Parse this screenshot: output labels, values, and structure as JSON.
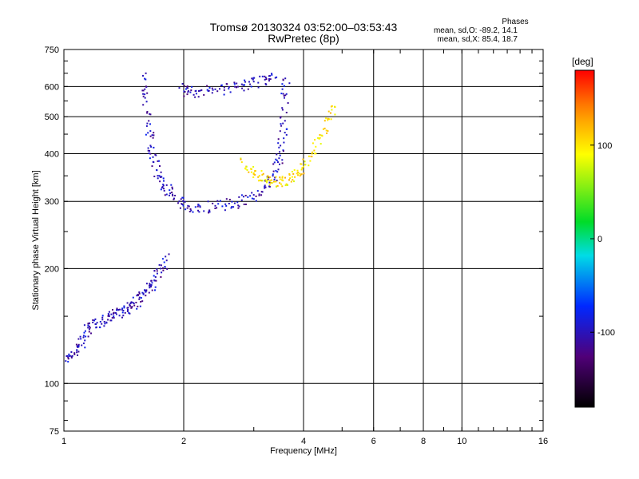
{
  "chart_data": {
    "type": "scatter",
    "title": "Tromsø 20130324 03:52:00–03:53:43",
    "subtitle": "RwPretec (8p)",
    "xlabel": "Frequency [MHz]",
    "ylabel": "Stationary phase Virtual Height [km]",
    "x_scale": "log",
    "y_scale": "log",
    "xlim": [
      1,
      16
    ],
    "ylim": [
      75,
      750
    ],
    "x_ticks": [
      1,
      2,
      4,
      6,
      8,
      10,
      16
    ],
    "y_ticks": [
      75,
      100,
      200,
      300,
      400,
      500,
      600,
      750
    ],
    "grid": true,
    "phase_stats": {
      "heading": "Phases",
      "line_o": "mean, sd,O: -89.2, 14.1",
      "line_x": "mean, sd,X: 85.4, 18.7"
    },
    "colorbar": {
      "unit": "[deg]",
      "range": [
        -180,
        180
      ],
      "ticks": [
        100,
        0,
        -100
      ]
    },
    "series": [
      {
        "description_trace": "E/F1 lower trace (blue)",
        "points": [
          [
            1.02,
            118
          ],
          [
            1.05,
            118
          ],
          [
            1.08,
            125
          ],
          [
            1.12,
            132
          ],
          [
            1.15,
            140
          ],
          [
            1.2,
            143
          ],
          [
            1.25,
            147
          ],
          [
            1.3,
            150
          ],
          [
            1.35,
            153
          ],
          [
            1.4,
            156
          ],
          [
            1.45,
            158
          ],
          [
            1.5,
            162
          ],
          [
            1.55,
            168
          ],
          [
            1.6,
            175
          ],
          [
            1.65,
            180
          ],
          [
            1.7,
            190
          ],
          [
            1.75,
            200
          ],
          [
            1.8,
            215
          ]
        ],
        "phase": -100
      },
      {
        "description_trace": "F2 O-mode trace (blue)",
        "points": [
          [
            1.58,
            640
          ],
          [
            1.6,
            560
          ],
          [
            1.62,
            480
          ],
          [
            1.65,
            420
          ],
          [
            1.68,
            380
          ],
          [
            1.72,
            350
          ],
          [
            1.78,
            330
          ],
          [
            1.85,
            315
          ],
          [
            1.95,
            300
          ],
          [
            2.05,
            292
          ],
          [
            2.2,
            290
          ],
          [
            2.4,
            292
          ],
          [
            2.6,
            296
          ],
          [
            2.8,
            302
          ],
          [
            3.0,
            312
          ],
          [
            3.2,
            330
          ],
          [
            3.35,
            350
          ],
          [
            3.45,
            380
          ],
          [
            3.5,
            420
          ],
          [
            3.55,
            480
          ],
          [
            3.58,
            560
          ],
          [
            3.6,
            630
          ]
        ],
        "phase": -100
      },
      {
        "description_trace": "Upper trace (blue)",
        "points": [
          [
            1.95,
            595
          ],
          [
            2.05,
            580
          ],
          [
            2.2,
            585
          ],
          [
            2.4,
            590
          ],
          [
            2.6,
            598
          ],
          [
            2.8,
            608
          ],
          [
            3.0,
            618
          ],
          [
            3.2,
            625
          ],
          [
            3.4,
            632
          ]
        ],
        "phase": -100
      },
      {
        "description_trace": "X-mode trace (yellow)",
        "points": [
          [
            2.8,
            380
          ],
          [
            2.95,
            365
          ],
          [
            3.1,
            350
          ],
          [
            3.25,
            340
          ],
          [
            3.4,
            338
          ],
          [
            3.55,
            340
          ],
          [
            3.7,
            345
          ],
          [
            3.85,
            355
          ],
          [
            4.0,
            370
          ],
          [
            4.2,
            400
          ],
          [
            4.4,
            440
          ],
          [
            4.6,
            490
          ],
          [
            4.8,
            530
          ]
        ],
        "phase": 100
      }
    ]
  }
}
